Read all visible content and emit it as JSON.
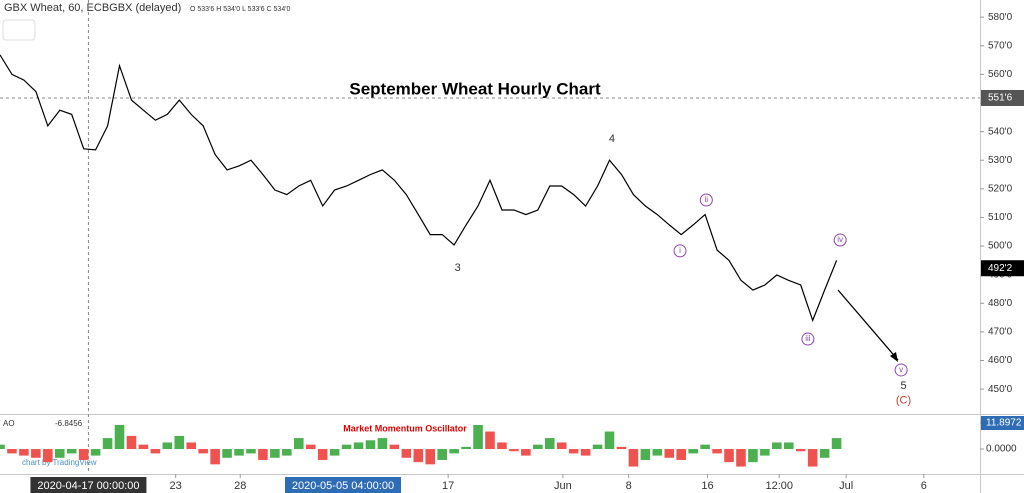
{
  "chart_data": [
    {
      "type": "line",
      "title": "September Wheat Hourly Chart",
      "subtitle": "GBX Wheat, 60, ECBGBX (delayed)",
      "ohlc": "O 533'6 H 534'0 L 533'6 C 534'0",
      "watermark": "chart by TradingView",
      "color": "#000000",
      "xlim": [
        0,
        82
      ],
      "ylim": [
        442,
        586
      ],
      "yticks": [
        {
          "value": 450,
          "label": "450'0"
        },
        {
          "value": 460,
          "label": "460'0"
        },
        {
          "value": 470,
          "label": "470'0"
        },
        {
          "value": 480,
          "label": "480'0"
        },
        {
          "value": 490,
          "label": "490'0"
        },
        {
          "value": 500,
          "label": "500'0"
        },
        {
          "value": 510,
          "label": "510'0"
        },
        {
          "value": 520,
          "label": "520'0"
        },
        {
          "value": 530,
          "label": "530'0"
        },
        {
          "value": 540,
          "label": "540'0"
        },
        {
          "value": 550,
          "label": "550'0"
        },
        {
          "value": 560,
          "label": "560'0"
        },
        {
          "value": 570,
          "label": "570'0"
        },
        {
          "value": 580,
          "label": "580'0"
        }
      ],
      "xticks": [
        {
          "value": 14.7,
          "label": "23"
        },
        {
          "value": 20.1,
          "label": "28"
        },
        {
          "value": 37.5,
          "label": "17"
        },
        {
          "value": 47.1,
          "label": "Jun"
        },
        {
          "value": 52.6,
          "label": "8"
        },
        {
          "value": 59.2,
          "label": "16"
        },
        {
          "value": 65.2,
          "label": "12:00"
        },
        {
          "value": 70.8,
          "label": "Jul"
        },
        {
          "value": 77.3,
          "label": "6"
        }
      ],
      "crosshair_x": [
        {
          "value": 7.4,
          "label": "2020-04-17 00:00:00"
        },
        {
          "value": 28.7,
          "label": "2020-05-05 04:00:00"
        }
      ],
      "crosshair_y": {
        "value": 551.75,
        "label": "551'6"
      },
      "last_price": {
        "value": 492.25,
        "label": "492'2"
      },
      "values": [
        566.8,
        560,
        558,
        554,
        542,
        547.5,
        546,
        534,
        533.6,
        542,
        563,
        551,
        547.5,
        544,
        546,
        551,
        546,
        542,
        532,
        526.6,
        528,
        530,
        525,
        519.6,
        518,
        521,
        523,
        514,
        519.6,
        521,
        523,
        525,
        526.6,
        523,
        518,
        511,
        504,
        504,
        500.4,
        507.4,
        514,
        523,
        512.6,
        512.6,
        511,
        512.6,
        521,
        521,
        518,
        514,
        521,
        530,
        525,
        518,
        514,
        511,
        507.4,
        504,
        507.4,
        511,
        498.6,
        495,
        488,
        484.6,
        486.4,
        489.9,
        488,
        486.4,
        474,
        484.6,
        495
      ],
      "annotations": [
        {
          "label": "3",
          "x": 38.3,
          "y": 492.3,
          "color": "#333333",
          "circled": false
        },
        {
          "label": "4",
          "x": 51.2,
          "y": 537.4,
          "color": "#333333",
          "circled": false
        },
        {
          "label": "i",
          "x": 56.9,
          "y": 498.3,
          "color": "#8e44ad",
          "circled": true
        },
        {
          "label": "ii",
          "x": 59.1,
          "y": 516.1,
          "color": "#8e44ad",
          "circled": true
        },
        {
          "label": "iii",
          "x": 67.6,
          "y": 467.5,
          "color": "#8e44ad",
          "circled": true
        },
        {
          "label": "iv",
          "x": 70.3,
          "y": 502.1,
          "color": "#8e44ad",
          "circled": true
        },
        {
          "label": "v",
          "x": 75.4,
          "y": 456.7,
          "color": "#8e44ad",
          "circled": true
        },
        {
          "label": "5",
          "x": 75.6,
          "y": 451,
          "color": "#333333",
          "circled": false
        },
        {
          "label": "(C)",
          "x": 75.6,
          "y": 445.9,
          "color": "#c0392b",
          "circled": false
        }
      ]
    },
    {
      "type": "bar",
      "title": "Market Momentum Oscillator",
      "name": "AO",
      "current": -6.8456,
      "up_color": "#4caf50",
      "down_color": "#ef5350",
      "ylim": [
        -10.5,
        15.1
      ],
      "yticks": [
        {
          "value": 0,
          "label": "0.0000"
        },
        11.8972
      ],
      "values": [
        2,
        -2,
        -3,
        -4,
        -6,
        -4,
        -2,
        -5,
        -3,
        5,
        11,
        6,
        2,
        -2,
        3,
        6,
        3,
        -2,
        -7,
        -4,
        -3,
        -2,
        -5,
        -4,
        -3,
        5,
        2,
        -5,
        -3,
        2,
        3,
        4,
        5,
        2,
        -4,
        -6,
        -7,
        -5,
        -2,
        1,
        11,
        8,
        3,
        -1,
        -3,
        2,
        5,
        3,
        -2,
        -3,
        2,
        8,
        1,
        -8,
        -5,
        -3,
        -4,
        -5,
        -2,
        2,
        -2,
        -6,
        -8,
        -6,
        -3,
        3,
        3,
        -1,
        -8,
        -4,
        5
      ]
    }
  ]
}
